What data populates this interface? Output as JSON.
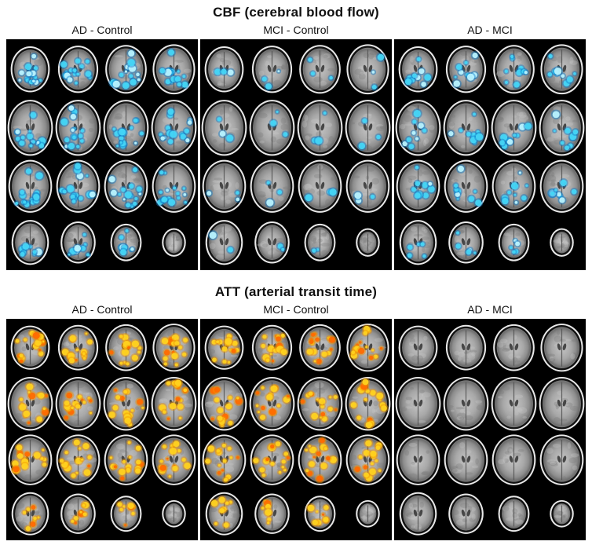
{
  "figure": {
    "panels": [
      {
        "id": "cbf",
        "title": "CBF (cerebral blood flow)",
        "bias": "posterior",
        "overlay": {
          "bright": "#45d6f7",
          "deep": "#0a7dc9",
          "hot": "#b8f3ff"
        },
        "columns": [
          {
            "label": "AD - Control",
            "overlay_density": "high"
          },
          {
            "label": "MCI - Control",
            "overlay_density": "low"
          },
          {
            "label": "AD - MCI",
            "overlay_density": "medium"
          }
        ]
      },
      {
        "id": "att",
        "title": "ATT (arterial transit time)",
        "bias": "scattered",
        "overlay": {
          "bright": "#ffd21f",
          "deep": "#f29500",
          "hot": "#ff6a00"
        },
        "columns": [
          {
            "label": "AD - Control",
            "overlay_density": "high"
          },
          {
            "label": "MCI - Control",
            "overlay_density": "high"
          },
          {
            "label": "AD - MCI",
            "overlay_density": "none"
          }
        ]
      }
    ]
  }
}
